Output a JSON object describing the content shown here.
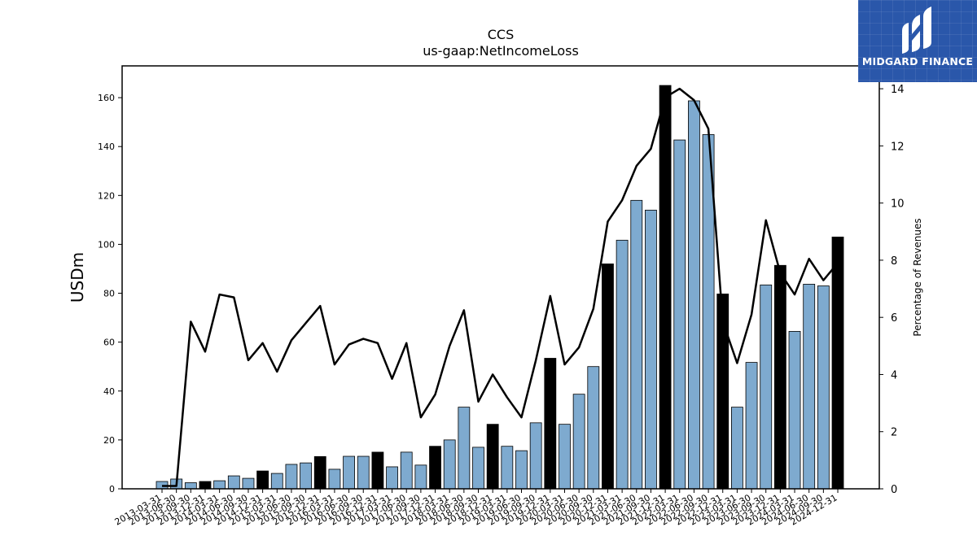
{
  "chart_data": {
    "type": "bar",
    "title": "CCS",
    "subtitle": "us-gaap:NetIncomeLoss",
    "ylabel": "USDm",
    "y2label": "Percentage of Revenues",
    "ylim": [
      0,
      173
    ],
    "y2lim": [
      0,
      14.8
    ],
    "yticks": [
      0,
      20,
      40,
      60,
      80,
      100,
      120,
      140,
      160
    ],
    "y2ticks": [
      0,
      2,
      4,
      6,
      8,
      10,
      12,
      14
    ],
    "grid": false,
    "colors": {
      "quarter": "#7eaacf",
      "year_end": "#000000",
      "line": "#000000"
    },
    "categories": [
      "2013-03-31",
      "2013-06-30",
      "2013-09-30",
      "2013-12-31",
      "2014-03-31",
      "2014-06-30",
      "2014-09-30",
      "2014-12-31",
      "2015-03-31",
      "2015-06-30",
      "2015-09-30",
      "2015-12-31",
      "2016-03-31",
      "2016-06-30",
      "2016-09-30",
      "2016-12-31",
      "2017-03-31",
      "2017-06-30",
      "2017-09-30",
      "2017-12-31",
      "2018-03-31",
      "2018-06-30",
      "2018-09-30",
      "2018-12-31",
      "2019-03-31",
      "2019-06-30",
      "2019-09-30",
      "2019-12-31",
      "2020-03-31",
      "2020-06-30",
      "2020-09-30",
      "2020-12-31",
      "2021-03-31",
      "2021-06-30",
      "2021-09-30",
      "2021-12-31",
      "2022-03-31",
      "2022-06-30",
      "2022-09-30",
      "2022-12-31",
      "2023-03-31",
      "2023-06-30",
      "2023-09-30",
      "2023-12-31",
      "2024-03-31",
      "2024-06-30",
      "2024-09-30",
      "2024-12-31"
    ],
    "series": [
      {
        "type": "bar",
        "values": [
          3.0,
          4.0,
          2.5,
          3.0,
          3.3,
          5.3,
          4.3,
          7.3,
          6.3,
          10.0,
          10.6,
          13.2,
          8.0,
          13.3,
          13.3,
          15.0,
          9.0,
          15.0,
          9.7,
          17.4,
          20.0,
          33.4,
          17.0,
          26.4,
          17.4,
          15.6,
          27.0,
          53.4,
          26.4,
          38.7,
          50.0,
          92.0,
          101.7,
          118.0,
          114.0,
          165.0,
          142.7,
          158.7,
          144.9,
          79.7,
          33.4,
          51.7,
          83.4,
          91.4,
          64.4,
          83.7,
          83.0,
          103.0
        ],
        "year_end": [
          false,
          false,
          false,
          true,
          false,
          false,
          false,
          true,
          false,
          false,
          false,
          true,
          false,
          false,
          false,
          true,
          false,
          false,
          false,
          true,
          false,
          false,
          false,
          true,
          false,
          false,
          false,
          true,
          false,
          false,
          false,
          true,
          false,
          false,
          false,
          true,
          false,
          false,
          false,
          true,
          false,
          false,
          false,
          true,
          false,
          false,
          false,
          true
        ]
      },
      {
        "type": "line",
        "axis": "right",
        "values": [
          0.1,
          0.1,
          5.85,
          4.8,
          6.8,
          6.7,
          4.5,
          5.1,
          4.1,
          5.2,
          5.8,
          6.4,
          4.35,
          5.05,
          5.25,
          5.1,
          3.85,
          5.1,
          2.5,
          3.3,
          5.0,
          6.25,
          3.05,
          4.0,
          3.2,
          2.5,
          4.5,
          6.75,
          4.35,
          4.95,
          6.3,
          9.35,
          10.1,
          11.3,
          11.9,
          13.7,
          14.0,
          13.6,
          12.6,
          5.85,
          4.4,
          6.1,
          9.4,
          7.55,
          6.8,
          8.05,
          7.3,
          7.9
        ]
      }
    ]
  },
  "logo": {
    "text": "MIDGARD FINANCE",
    "icon": "midgard-logo-icon"
  }
}
